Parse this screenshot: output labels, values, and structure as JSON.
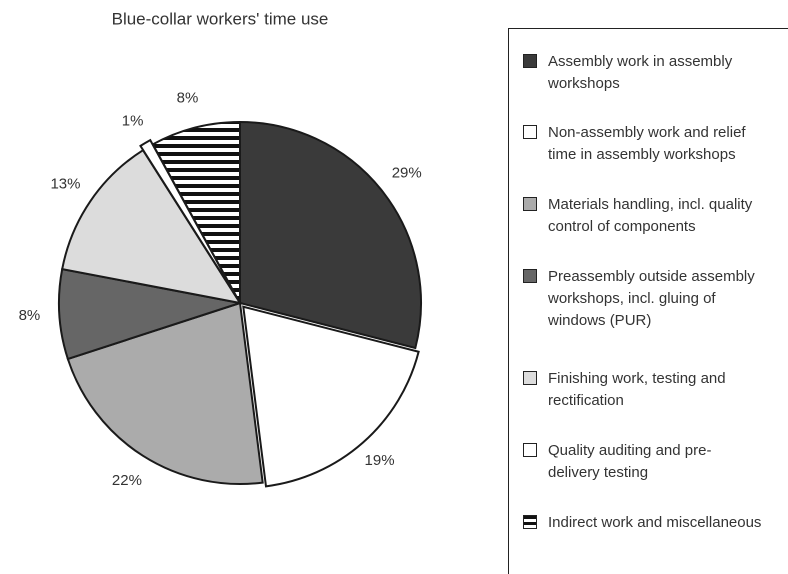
{
  "chart_data": {
    "type": "pie",
    "title": "Blue-collar workers' time use",
    "categories": [
      "Assembly work in assembly workshops",
      "Non-assembly work and relief time in assembly workshops",
      "Materials handling, incl. quality control of components",
      "Preassembly outside assembly workshops, incl. gluing of windows (PUR)",
      "Finishing work, testing and rectification",
      "Quality auditing and pre-delivery testing",
      "Indirect work and miscellaneous"
    ],
    "values": [
      29,
      19,
      22,
      8,
      13,
      1,
      8
    ],
    "value_labels": [
      "29%",
      "19%",
      "22%",
      "8%",
      "13%",
      "1%",
      "8%"
    ],
    "colors": [
      "#3a3a3a",
      "#ffffff",
      "#ababab",
      "#666666",
      "#dcdcdc",
      "#ffffff",
      "#000000"
    ],
    "hatch": [
      null,
      null,
      null,
      null,
      null,
      null,
      "horizontal"
    ],
    "legend": "right"
  }
}
